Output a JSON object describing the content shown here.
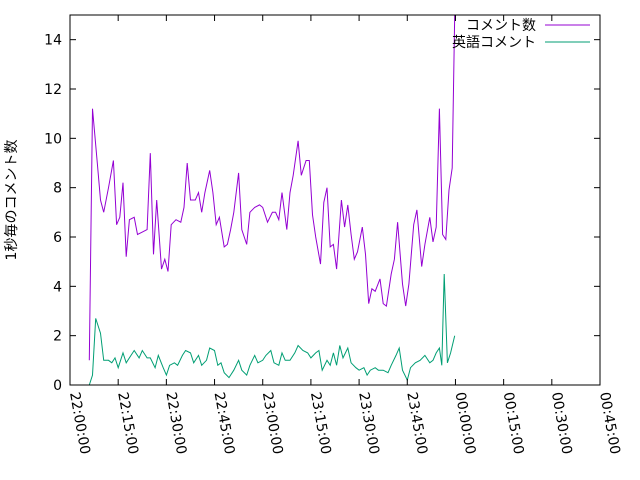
{
  "chart_data": {
    "type": "line",
    "title": "",
    "xlabel": "",
    "ylabel": "1秒毎のコメント数",
    "ylim": [
      0,
      15
    ],
    "xlim": [
      "22:00:00",
      "00:45:00"
    ],
    "yticks": [
      0,
      2,
      4,
      6,
      8,
      10,
      12,
      14
    ],
    "xticks": [
      "22:00:00",
      "22:15:00",
      "22:30:00",
      "22:45:00",
      "23:00:00",
      "23:15:00",
      "23:30:00",
      "23:45:00",
      "00:00:00",
      "00:15:00",
      "00:30:00",
      "00:45:00"
    ],
    "grid": false,
    "legend_position": "top-right",
    "series": [
      {
        "name": "コメント数",
        "color": "#9400d3",
        "points": [
          [
            "22:06:00",
            1.0
          ],
          [
            "22:07:00",
            11.2
          ],
          [
            "22:08:30",
            9.0
          ],
          [
            "22:09:30",
            7.5
          ],
          [
            "22:10:30",
            7.0
          ],
          [
            "22:12:00",
            8.0
          ],
          [
            "22:13:30",
            9.1
          ],
          [
            "22:14:30",
            6.5
          ],
          [
            "22:15:30",
            6.8
          ],
          [
            "22:16:30",
            8.2
          ],
          [
            "22:17:30",
            5.2
          ],
          [
            "22:18:30",
            6.7
          ],
          [
            "22:20:00",
            6.8
          ],
          [
            "22:21:00",
            6.1
          ],
          [
            "22:22:30",
            6.2
          ],
          [
            "22:24:00",
            6.3
          ],
          [
            "22:25:00",
            9.4
          ],
          [
            "22:26:00",
            5.3
          ],
          [
            "22:27:00",
            7.5
          ],
          [
            "22:28:30",
            4.7
          ],
          [
            "22:29:30",
            5.1
          ],
          [
            "22:30:30",
            4.6
          ],
          [
            "22:31:30",
            6.5
          ],
          [
            "22:33:00",
            6.7
          ],
          [
            "22:34:30",
            6.6
          ],
          [
            "22:35:30",
            7.2
          ],
          [
            "22:36:30",
            9.0
          ],
          [
            "22:37:30",
            7.5
          ],
          [
            "22:39:00",
            7.5
          ],
          [
            "22:40:00",
            7.8
          ],
          [
            "22:41:00",
            7.0
          ],
          [
            "22:42:00",
            7.8
          ],
          [
            "22:43:30",
            8.7
          ],
          [
            "22:44:30",
            7.8
          ],
          [
            "22:45:30",
            6.5
          ],
          [
            "22:46:30",
            6.8
          ],
          [
            "22:48:00",
            5.6
          ],
          [
            "22:49:00",
            5.7
          ],
          [
            "22:50:00",
            6.3
          ],
          [
            "22:51:00",
            7.0
          ],
          [
            "22:52:30",
            8.6
          ],
          [
            "22:53:30",
            6.3
          ],
          [
            "22:55:00",
            5.7
          ],
          [
            "22:56:00",
            7.0
          ],
          [
            "22:57:30",
            7.2
          ],
          [
            "22:59:00",
            7.3
          ],
          [
            "23:00:00",
            7.2
          ],
          [
            "23:01:30",
            6.6
          ],
          [
            "23:03:00",
            7.0
          ],
          [
            "23:04:00",
            7.0
          ],
          [
            "23:05:00",
            6.7
          ],
          [
            "23:06:00",
            7.8
          ],
          [
            "23:07:30",
            6.3
          ],
          [
            "23:08:30",
            7.8
          ],
          [
            "23:09:30",
            8.5
          ],
          [
            "23:11:00",
            9.9
          ],
          [
            "23:12:00",
            8.5
          ],
          [
            "23:13:30",
            9.1
          ],
          [
            "23:14:30",
            9.1
          ],
          [
            "23:15:30",
            6.9
          ],
          [
            "23:16:30",
            6.0
          ],
          [
            "23:18:00",
            4.9
          ],
          [
            "23:19:00",
            7.4
          ],
          [
            "23:20:00",
            8.0
          ],
          [
            "23:21:00",
            5.6
          ],
          [
            "23:22:00",
            5.7
          ],
          [
            "23:23:00",
            4.7
          ],
          [
            "23:24:30",
            7.5
          ],
          [
            "23:25:30",
            6.4
          ],
          [
            "23:26:30",
            7.3
          ],
          [
            "23:27:30",
            6.1
          ],
          [
            "23:28:30",
            5.1
          ],
          [
            "23:29:30",
            5.4
          ],
          [
            "23:31:00",
            6.4
          ],
          [
            "23:32:00",
            5.3
          ],
          [
            "23:33:00",
            3.3
          ],
          [
            "23:34:00",
            3.9
          ],
          [
            "23:35:00",
            3.8
          ],
          [
            "23:36:30",
            4.3
          ],
          [
            "23:37:30",
            3.3
          ],
          [
            "23:38:30",
            3.2
          ],
          [
            "23:40:00",
            4.5
          ],
          [
            "23:41:00",
            5.1
          ],
          [
            "23:42:00",
            6.6
          ],
          [
            "23:43:30",
            4.1
          ],
          [
            "23:44:30",
            3.2
          ],
          [
            "23:45:30",
            4.1
          ],
          [
            "23:47:00",
            6.5
          ],
          [
            "23:48:00",
            7.1
          ],
          [
            "23:49:30",
            4.8
          ],
          [
            "23:50:30",
            5.7
          ],
          [
            "23:52:00",
            6.8
          ],
          [
            "23:53:00",
            5.8
          ],
          [
            "23:54:00",
            6.4
          ],
          [
            "23:55:00",
            11.2
          ],
          [
            "23:56:00",
            6.1
          ],
          [
            "23:57:00",
            5.9
          ],
          [
            "23:58:00",
            7.9
          ],
          [
            "23:59:00",
            8.8
          ],
          [
            "23:59:45",
            15.0
          ]
        ]
      },
      {
        "name": "英語コメント",
        "color": "#009e73",
        "points": [
          [
            "22:06:00",
            0.0
          ],
          [
            "22:07:00",
            0.4
          ],
          [
            "22:08:00",
            2.7
          ],
          [
            "22:09:30",
            2.1
          ],
          [
            "22:10:30",
            1.0
          ],
          [
            "22:12:00",
            1.0
          ],
          [
            "22:13:00",
            0.9
          ],
          [
            "22:14:00",
            1.1
          ],
          [
            "22:15:00",
            0.7
          ],
          [
            "22:16:30",
            1.3
          ],
          [
            "22:17:30",
            0.9
          ],
          [
            "22:19:00",
            1.2
          ],
          [
            "22:20:00",
            1.4
          ],
          [
            "22:21:30",
            1.1
          ],
          [
            "22:22:30",
            1.4
          ],
          [
            "22:24:00",
            1.1
          ],
          [
            "22:25:00",
            1.1
          ],
          [
            "22:26:30",
            0.7
          ],
          [
            "22:27:30",
            1.2
          ],
          [
            "22:29:00",
            0.7
          ],
          [
            "22:30:00",
            0.4
          ],
          [
            "22:31:00",
            0.8
          ],
          [
            "22:32:30",
            0.9
          ],
          [
            "22:33:30",
            0.8
          ],
          [
            "22:35:00",
            1.2
          ],
          [
            "22:36:00",
            1.4
          ],
          [
            "22:37:30",
            1.3
          ],
          [
            "22:38:30",
            0.9
          ],
          [
            "22:40:00",
            1.2
          ],
          [
            "22:41:00",
            0.8
          ],
          [
            "22:42:30",
            1.0
          ],
          [
            "22:43:30",
            1.5
          ],
          [
            "22:45:00",
            1.4
          ],
          [
            "22:46:00",
            0.8
          ],
          [
            "22:47:00",
            0.9
          ],
          [
            "22:48:00",
            0.5
          ],
          [
            "22:49:30",
            0.3
          ],
          [
            "22:51:00",
            0.6
          ],
          [
            "22:52:30",
            1.0
          ],
          [
            "22:53:30",
            0.6
          ],
          [
            "22:55:00",
            0.4
          ],
          [
            "22:56:00",
            0.8
          ],
          [
            "22:57:30",
            1.2
          ],
          [
            "22:58:30",
            0.9
          ],
          [
            "23:00:00",
            1.0
          ],
          [
            "23:01:00",
            1.2
          ],
          [
            "23:02:30",
            1.4
          ],
          [
            "23:03:30",
            0.9
          ],
          [
            "23:05:00",
            0.8
          ],
          [
            "23:06:00",
            1.3
          ],
          [
            "23:07:00",
            1.0
          ],
          [
            "23:08:30",
            1.0
          ],
          [
            "23:10:00",
            1.3
          ],
          [
            "23:11:00",
            1.6
          ],
          [
            "23:12:30",
            1.4
          ],
          [
            "23:14:00",
            1.3
          ],
          [
            "23:15:00",
            1.1
          ],
          [
            "23:16:30",
            1.3
          ],
          [
            "23:17:30",
            1.4
          ],
          [
            "23:18:30",
            0.6
          ],
          [
            "23:20:00",
            1.0
          ],
          [
            "23:21:00",
            0.8
          ],
          [
            "23:22:00",
            1.3
          ],
          [
            "23:23:00",
            0.8
          ],
          [
            "23:24:00",
            1.6
          ],
          [
            "23:25:00",
            1.1
          ],
          [
            "23:26:30",
            1.5
          ],
          [
            "23:27:30",
            0.9
          ],
          [
            "23:29:00",
            0.7
          ],
          [
            "23:30:00",
            0.6
          ],
          [
            "23:31:30",
            0.7
          ],
          [
            "23:32:30",
            0.4
          ],
          [
            "23:33:30",
            0.6
          ],
          [
            "23:35:00",
            0.7
          ],
          [
            "23:36:00",
            0.6
          ],
          [
            "23:37:30",
            0.6
          ],
          [
            "23:39:00",
            0.5
          ],
          [
            "23:40:00",
            0.8
          ],
          [
            "23:41:30",
            1.2
          ],
          [
            "23:42:30",
            1.5
          ],
          [
            "23:43:30",
            0.6
          ],
          [
            "23:45:00",
            0.2
          ],
          [
            "23:46:00",
            0.7
          ],
          [
            "23:47:30",
            0.9
          ],
          [
            "23:49:00",
            1.0
          ],
          [
            "23:50:30",
            1.2
          ],
          [
            "23:52:00",
            0.9
          ],
          [
            "23:53:00",
            1.0
          ],
          [
            "23:54:00",
            1.3
          ],
          [
            "23:55:00",
            1.5
          ],
          [
            "23:55:45",
            0.8
          ],
          [
            "23:56:30",
            4.5
          ],
          [
            "23:57:30",
            0.9
          ],
          [
            "23:58:30",
            1.3
          ],
          [
            "23:59:45",
            2.0
          ]
        ]
      }
    ]
  }
}
